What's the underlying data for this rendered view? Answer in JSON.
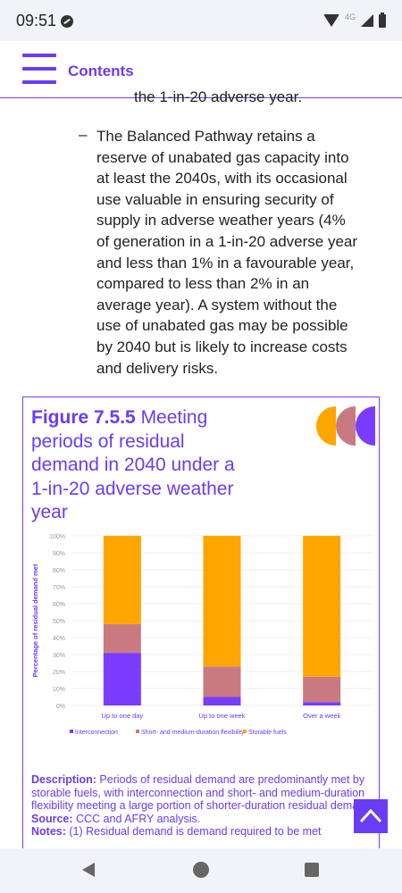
{
  "status": {
    "time": "09:51",
    "network": "4G"
  },
  "header": {
    "title": "Contents"
  },
  "content": {
    "cut_line": "the 1-in-20 adverse year.",
    "bullet_dash": "–",
    "bullet_lines": [
      "The Balanced Pathway retains a",
      "reserve of unabated gas capacity into",
      "at least the 2040s, with its occasional",
      "use valuable in ensuring security of",
      "supply in adverse weather years (4%",
      "of generation in a 1-in-20 adverse year",
      "and less than 1% in a favourable year,",
      "compared to less than 2% in an",
      "average year). A system without the",
      "use of unabated gas may be possible",
      "by 2040 but is likely to increase costs",
      "and delivery risks."
    ]
  },
  "figure": {
    "number": "Figure 7.5.5",
    "title_lines": [
      "Meeting",
      "periods of residual",
      "demand in 2040 under a",
      "1-in-20 adverse weather",
      "year"
    ],
    "description_label": "Description:",
    "description": "Periods of residual demand are predominantly met by storable fuels, with interconnection and short- and medium-duration flexibility meeting a large portion of shorter-duration residual demand.",
    "source_label": "Source:",
    "source": "CCC and AFRY analysis.",
    "notes_label": "Notes:",
    "notes": "(1) Residual demand is demand required to be met"
  },
  "chart_data": {
    "type": "bar",
    "stacked": true,
    "categories": [
      "Up to one day",
      "Up to one week",
      "Over a week"
    ],
    "series": [
      {
        "name": "Interconnection",
        "values": [
          31,
          5,
          2
        ],
        "color": "#7a3cff"
      },
      {
        "name": "Short- and medium-duration flexibility",
        "values": [
          17,
          18,
          15
        ],
        "color": "#c97a80"
      },
      {
        "name": "Storable fuels",
        "values": [
          52,
          77,
          83
        ],
        "color": "#ffa500"
      }
    ],
    "ylabel": "Percentage of residual demand met",
    "ylim": [
      0,
      100
    ],
    "yticks": [
      "0%",
      "10%",
      "20%",
      "30%",
      "40%",
      "50%",
      "60%",
      "70%",
      "80%",
      "90%",
      "100%"
    ],
    "grid": true,
    "legend": "bottom"
  },
  "colors": {
    "accent": "#6a3cf5",
    "logo": [
      "#ffa500",
      "#c97a80",
      "#7a3cff"
    ]
  },
  "icons": {
    "menu": "hamburger-icon",
    "scroll_top": "chevron-up-icon"
  }
}
